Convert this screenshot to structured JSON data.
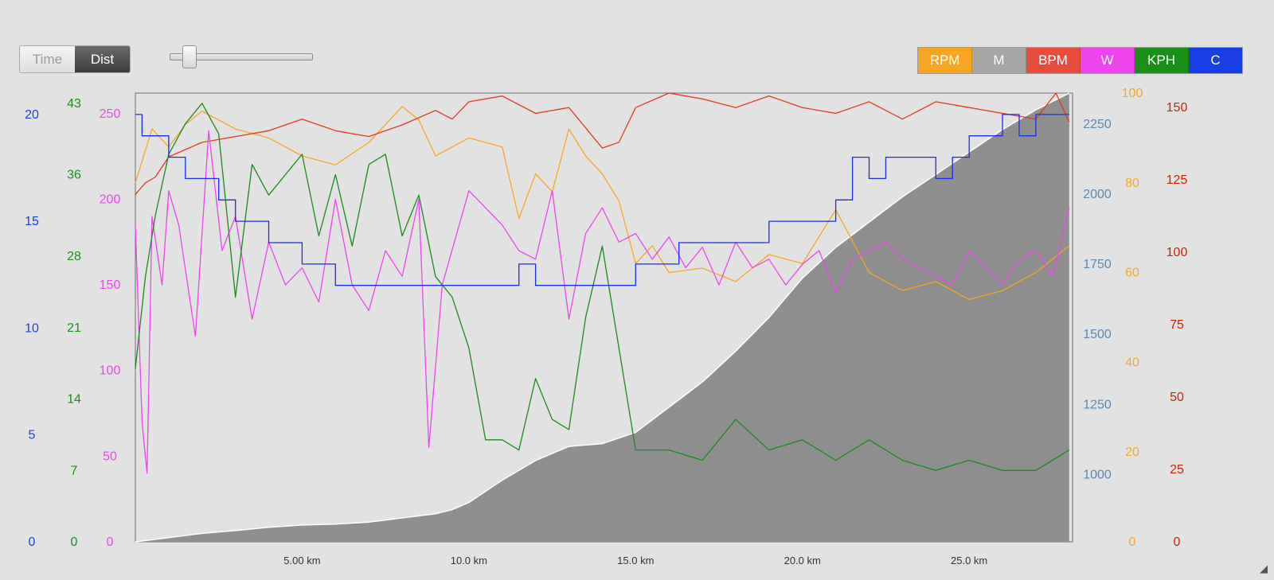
{
  "controls": {
    "time_label": "Time",
    "dist_label": "Dist",
    "selected": "Dist",
    "zoom_level": 0.1
  },
  "legend": [
    {
      "label": "RPM",
      "color": "#f6a623"
    },
    {
      "label": "M",
      "color": "#a6a6a6"
    },
    {
      "label": "BPM",
      "color": "#e74c3c"
    },
    {
      "label": "W",
      "color": "#ee44ee"
    },
    {
      "label": "KPH",
      "color": "#1a8f1a"
    },
    {
      "label": "C",
      "color": "#1a3ee6"
    }
  ],
  "chart_data": {
    "type": "line",
    "x_unit": "km",
    "xlim": [
      0,
      28.1
    ],
    "x_ticks": [
      {
        "value": 5,
        "label": "5.00 km"
      },
      {
        "value": 10,
        "label": "10.0 km"
      },
      {
        "value": 15,
        "label": "15.0 km"
      },
      {
        "value": 20,
        "label": "20.0 km"
      },
      {
        "value": 25,
        "label": "25.0 km"
      }
    ],
    "axes": [
      {
        "id": "C",
        "color": "#1a3ee6",
        "ylim": [
          0,
          21
        ],
        "ticks": [
          0,
          5,
          10,
          15,
          20
        ]
      },
      {
        "id": "KPH",
        "color": "#1a8f1a",
        "ylim": [
          0,
          44
        ],
        "ticks": [
          0,
          7,
          14,
          21,
          28,
          36,
          43
        ]
      },
      {
        "id": "W",
        "color": "#ee44ee",
        "ylim": [
          0,
          262
        ],
        "ticks": [
          0,
          50,
          100,
          150,
          200,
          250
        ]
      },
      {
        "id": "M",
        "color": "#5b86b0",
        "ylim": [
          760,
          2360
        ],
        "ticks": [
          1000,
          1250,
          1500,
          1750,
          2000,
          2250
        ]
      },
      {
        "id": "RPM",
        "color": "#f6a623",
        "ylim": [
          0,
          100
        ],
        "ticks": [
          0,
          20,
          40,
          60,
          80,
          100
        ]
      },
      {
        "id": "BPM",
        "color": "#cc2200",
        "ylim": [
          0,
          155
        ],
        "ticks": [
          0,
          25,
          50,
          75,
          100,
          125,
          150
        ]
      }
    ],
    "series": [
      {
        "name": "M",
        "axis": "M",
        "color": "#8f8f8f",
        "style": "area",
        "x": [
          0,
          1,
          2,
          3,
          4,
          5,
          6,
          7,
          8,
          9,
          9.5,
          10,
          10.5,
          11,
          12,
          13,
          14,
          15,
          16,
          17,
          18,
          19,
          20,
          21,
          22,
          23,
          24,
          25,
          26,
          27,
          28
        ],
        "y": [
          760,
          775,
          790,
          800,
          812,
          820,
          823,
          830,
          845,
          860,
          875,
          900,
          940,
          980,
          1050,
          1100,
          1110,
          1150,
          1240,
          1330,
          1440,
          1560,
          1700,
          1810,
          1900,
          1990,
          2070,
          2150,
          2230,
          2300,
          2360
        ]
      },
      {
        "name": "RPM",
        "axis": "RPM",
        "color": "#f6a623",
        "style": "line",
        "x": [
          0,
          0.5,
          1,
          1.5,
          2,
          3,
          4,
          5,
          6,
          7,
          8,
          8.5,
          9,
          10,
          11,
          11.5,
          12,
          12.5,
          13,
          13.5,
          14,
          14.5,
          15,
          15.5,
          16,
          17,
          18,
          19,
          20,
          21,
          22,
          23,
          24,
          25,
          26,
          27,
          28
        ],
        "y": [
          80,
          92,
          88,
          93,
          96,
          92,
          90,
          86,
          84,
          89,
          97,
          94,
          86,
          90,
          88,
          72,
          82,
          78,
          92,
          86,
          82,
          76,
          62,
          66,
          60,
          61,
          58,
          64,
          62,
          74,
          60,
          56,
          58,
          54,
          56,
          60,
          66
        ]
      },
      {
        "name": "BPM",
        "axis": "BPM",
        "color": "#e03a1e",
        "style": "line",
        "x": [
          0,
          0.3,
          0.6,
          1,
          2,
          3,
          4,
          5,
          6,
          7,
          8,
          9,
          9.5,
          10,
          11,
          12,
          13,
          14,
          14.5,
          15,
          16,
          17,
          18,
          19,
          20,
          21,
          22,
          23,
          24,
          25,
          26,
          27,
          27.6,
          28
        ],
        "y": [
          120,
          124,
          126,
          133,
          138,
          140,
          142,
          146,
          142,
          140,
          144,
          149,
          146,
          152,
          154,
          148,
          150,
          136,
          138,
          150,
          155,
          153,
          150,
          154,
          150,
          148,
          152,
          146,
          152,
          150,
          148,
          146,
          155,
          145
        ]
      },
      {
        "name": "W",
        "axis": "W",
        "color": "#ee44ee",
        "style": "line",
        "x": [
          0,
          0.2,
          0.35,
          0.5,
          0.8,
          1,
          1.3,
          1.8,
          2.2,
          2.6,
          3,
          3.5,
          4,
          4.5,
          5,
          5.5,
          6,
          6.5,
          7,
          7.5,
          8,
          8.5,
          8.8,
          9.2,
          10,
          10.5,
          11,
          11.5,
          12,
          12.5,
          13,
          13.5,
          14,
          14.5,
          15,
          15.5,
          16,
          16.5,
          17,
          17.5,
          18,
          18.5,
          19,
          19.5,
          20,
          20.5,
          21,
          21.5,
          22,
          22.5,
          23,
          23.5,
          24,
          24.5,
          25,
          25.5,
          26,
          26.5,
          27,
          27.5,
          28
        ],
        "y": [
          185,
          70,
          40,
          190,
          150,
          205,
          185,
          120,
          240,
          170,
          190,
          130,
          175,
          150,
          160,
          140,
          200,
          150,
          135,
          170,
          155,
          200,
          55,
          150,
          205,
          195,
          185,
          170,
          165,
          205,
          130,
          180,
          195,
          175,
          180,
          165,
          178,
          160,
          172,
          150,
          175,
          160,
          165,
          150,
          162,
          170,
          145,
          165,
          170,
          175,
          165,
          160,
          155,
          150,
          170,
          160,
          150,
          165,
          170,
          155,
          195
        ]
      },
      {
        "name": "KPH",
        "axis": "KPH",
        "color": "#1a8a1a",
        "style": "line",
        "x": [
          0,
          0.3,
          0.6,
          1,
          1.5,
          2,
          2.5,
          3,
          3.5,
          4,
          5,
          5.5,
          6,
          6.5,
          7,
          7.5,
          8,
          8.5,
          9,
          9.5,
          10,
          10.5,
          11,
          11.5,
          12,
          12.5,
          13,
          13.5,
          14,
          14.5,
          15,
          16,
          17,
          18,
          19,
          20,
          21,
          22,
          23,
          24,
          25,
          26,
          27,
          28
        ],
        "y": [
          17,
          26,
          32,
          38,
          41,
          43,
          40,
          24,
          37,
          34,
          38,
          30,
          36,
          29,
          37,
          38,
          30,
          34,
          26,
          24,
          19,
          10,
          10,
          9,
          16,
          12,
          11,
          22,
          29,
          19,
          9,
          9,
          8,
          12,
          9,
          10,
          8,
          10,
          8,
          7,
          8,
          7,
          7,
          9
        ]
      },
      {
        "name": "C",
        "axis": "C",
        "color": "#1a2ee6",
        "style": "step",
        "x": [
          0,
          0.2,
          1,
          1.5,
          2.5,
          3,
          4,
          5,
          6,
          7,
          8,
          9,
          10,
          11,
          11.5,
          12,
          13,
          14,
          15,
          16,
          16.3,
          17,
          18,
          19,
          20,
          21,
          21.5,
          22,
          22.5,
          23,
          24,
          24.5,
          25,
          26,
          26.5,
          27,
          27.5,
          28
        ],
        "y": [
          20,
          19,
          18,
          17,
          16,
          15,
          14,
          13,
          12,
          12,
          12,
          12,
          12,
          12,
          13,
          12,
          12,
          12,
          13,
          13,
          14,
          14,
          14,
          15,
          15,
          16,
          18,
          17,
          18,
          18,
          17,
          18,
          19,
          20,
          19,
          20,
          20,
          20
        ]
      }
    ]
  }
}
